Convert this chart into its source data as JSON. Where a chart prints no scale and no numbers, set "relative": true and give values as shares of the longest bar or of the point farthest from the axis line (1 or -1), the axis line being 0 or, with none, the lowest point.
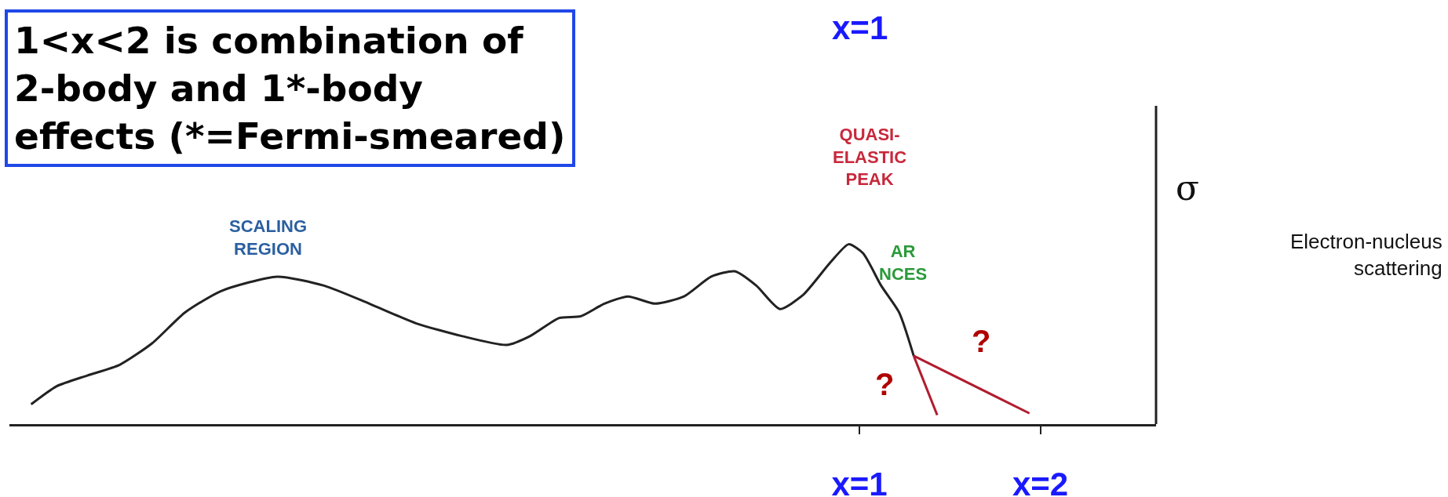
{
  "chart_data": {
    "type": "line",
    "relative": true,
    "ylabel": "σ",
    "xlim": [
      -3.7,
      2.64
    ],
    "xticks": [
      {
        "value": 1,
        "label": "x=1"
      },
      {
        "value": 2,
        "label": "x=2"
      }
    ],
    "tick_labels": "x",
    "grid": false,
    "marker": "none",
    "line_style": "solid",
    "series": [
      {
        "color": "#222222",
        "x": [
          -3.58,
          -3.44,
          -3.27,
          -3.09,
          -2.91,
          -2.73,
          -2.53,
          -2.22,
          -1.96,
          -1.71,
          -1.45,
          -1.2,
          -0.95,
          -0.82,
          -0.66,
          -0.54,
          -0.41,
          -0.28,
          -0.13,
          0.03,
          0.18,
          0.31,
          0.43,
          0.56,
          0.69,
          0.84,
          0.94,
          1.02,
          1.12,
          1.22,
          1.3
        ],
        "values": [
          0.11,
          0.21,
          0.27,
          0.33,
          0.45,
          0.62,
          0.74,
          0.82,
          0.77,
          0.67,
          0.56,
          0.49,
          0.44,
          0.49,
          0.59,
          0.6,
          0.67,
          0.71,
          0.67,
          0.71,
          0.82,
          0.85,
          0.77,
          0.64,
          0.72,
          0.9,
          1,
          0.95,
          0.77,
          0.62,
          0.38
        ]
      },
      {
        "color": "#b01c2e",
        "x": [
          1.3,
          1.43
        ],
        "values": [
          0.38,
          0.05
        ]
      },
      {
        "color": "#b01c2e",
        "x": [
          1.3,
          1.94
        ],
        "values": [
          0.38,
          0.06
        ]
      }
    ],
    "annotations": [
      "1<x<2 is combination of\n2-body and 1*-body\neffects (*=Fermi-smeared)",
      "x=1",
      "QUASI-\nELASTIC\nPEAK",
      "SCALING\nREGION",
      "AR\nNCES",
      "?",
      "?",
      "Electron-nucleus\nscattering"
    ]
  }
}
